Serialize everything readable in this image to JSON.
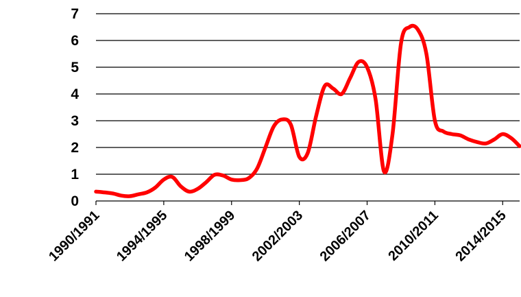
{
  "chart_data": {
    "type": "line",
    "title": "",
    "xlabel": "",
    "ylabel": "",
    "ylim": [
      0,
      7
    ],
    "y_ticks": [
      "0",
      "1",
      "2",
      "3",
      "4",
      "5",
      "6",
      "7"
    ],
    "x_tick_labels": [
      "1990/1991",
      "1994/1995",
      "1998/1999",
      "2002/2003",
      "2006/2007",
      "2010/2011",
      "2014/2015"
    ],
    "grid": true,
    "legend": "none",
    "series": [
      {
        "color": "#ff0000",
        "x": [
          0,
          0.5,
          1,
          1.5,
          2,
          2.5,
          3,
          3.5,
          4,
          4.5,
          5,
          5.5,
          6,
          6.5,
          7,
          7.5,
          8,
          8.5,
          9,
          9.5,
          10,
          10.5,
          11,
          11.5,
          12,
          12.5,
          13,
          13.5,
          14,
          14.5,
          15,
          15.5,
          16,
          16.5,
          17,
          17.5,
          18,
          18.5,
          19,
          19.5,
          20,
          20.5,
          21,
          21.5,
          22,
          22.5,
          23,
          23.5,
          24,
          24.5,
          25
        ],
        "values": [
          0.35,
          0.32,
          0.28,
          0.2,
          0.18,
          0.25,
          0.32,
          0.5,
          0.8,
          0.9,
          0.55,
          0.35,
          0.45,
          0.7,
          0.98,
          0.95,
          0.8,
          0.78,
          0.85,
          1.2,
          2.0,
          2.8,
          3.05,
          2.85,
          1.65,
          1.8,
          3.2,
          4.3,
          4.2,
          4.0,
          4.6,
          5.2,
          5.0,
          3.8,
          1.1,
          2.5,
          5.9,
          6.5,
          6.4,
          5.5,
          3.0,
          2.6,
          2.5,
          2.45,
          2.3,
          2.2,
          2.15,
          2.3,
          2.5,
          2.35,
          2.05
        ]
      }
    ]
  }
}
